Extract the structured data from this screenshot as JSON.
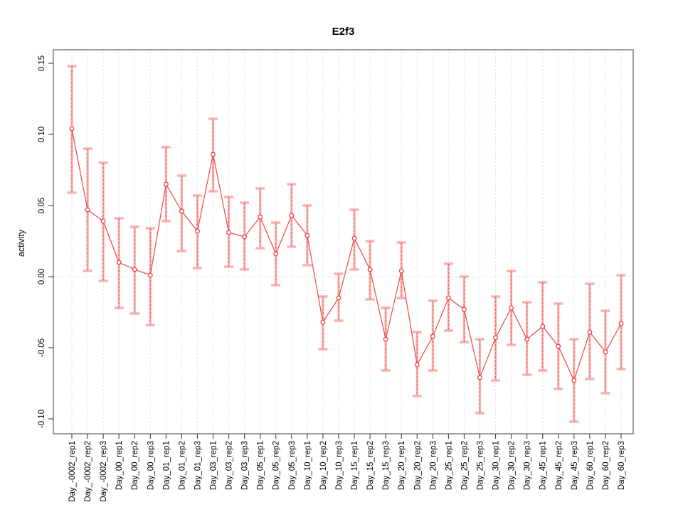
{
  "chart_data": {
    "type": "line",
    "title": "E2f3",
    "xlabel": "",
    "ylabel": "activity",
    "legend": "none",
    "marker": "open-circle",
    "error_bars": true,
    "grid": {
      "vertical": "dotted-per-category",
      "zero_line": "dotted"
    },
    "ylim": [
      -0.1105,
      0.1595
    ],
    "yticks": {
      "values": [
        0.15,
        0.1,
        0.05,
        0.0,
        -0.05,
        -0.1
      ],
      "labels": [
        "0.15",
        "0.10",
        "0.05",
        "0.00",
        "-0.05",
        "-0.10"
      ]
    },
    "categories": [
      "Day_-0002_rep1",
      "Day_-0002_rep2",
      "Day_-0002_rep3",
      "Day_00_rep1",
      "Day_00_rep2",
      "Day_00_rep3",
      "Day_01_rep1",
      "Day_01_rep2",
      "Day_01_rep3",
      "Day_03_rep1",
      "Day_03_rep2",
      "Day_03_rep3",
      "Day_05_rep1",
      "Day_05_rep2",
      "Day_05_rep3",
      "Day_10_rep1",
      "Day_10_rep2",
      "Day_10_rep3",
      "Day_15_rep1",
      "Day_15_rep2",
      "Day_15_rep3",
      "Day_20_rep1",
      "Day_20_rep2",
      "Day_20_rep3",
      "Day_25_rep1",
      "Day_25_rep2",
      "Day_25_rep3",
      "Day_30_rep1",
      "Day_30_rep2",
      "Day_30_rep3",
      "Day_45_rep1",
      "Day_45_rep2",
      "Day_45_rep3",
      "Day_60_rep1",
      "Day_60_rep2",
      "Day_60_rep3"
    ],
    "series": [
      {
        "name": "E2f3 activity",
        "values": [
          0.104,
          0.047,
          0.039,
          0.01,
          0.005,
          0.001,
          0.065,
          0.046,
          0.032,
          0.086,
          0.031,
          0.028,
          0.042,
          0.016,
          0.043,
          0.029,
          -0.032,
          -0.015,
          0.027,
          0.005,
          -0.044,
          0.004,
          -0.062,
          -0.042,
          -0.015,
          -0.023,
          -0.071,
          -0.043,
          -0.022,
          -0.044,
          -0.035,
          -0.049,
          -0.073,
          -0.039,
          -0.053,
          -0.033
        ],
        "err_lo": [
          0.059,
          0.004,
          -0.003,
          -0.022,
          -0.026,
          -0.034,
          0.039,
          0.018,
          0.006,
          0.06,
          0.007,
          0.005,
          0.02,
          -0.006,
          0.021,
          0.008,
          -0.051,
          -0.031,
          0.005,
          -0.016,
          -0.066,
          -0.015,
          -0.084,
          -0.066,
          -0.038,
          -0.046,
          -0.096,
          -0.073,
          -0.048,
          -0.069,
          -0.066,
          -0.079,
          -0.102,
          -0.072,
          -0.082,
          -0.065
        ],
        "err_hi": [
          0.148,
          0.09,
          0.08,
          0.041,
          0.035,
          0.034,
          0.091,
          0.071,
          0.057,
          0.111,
          0.056,
          0.052,
          0.062,
          0.038,
          0.065,
          0.05,
          -0.014,
          0.002,
          0.047,
          0.025,
          -0.022,
          0.024,
          -0.039,
          -0.017,
          0.009,
          0.0,
          -0.044,
          -0.014,
          0.004,
          -0.018,
          -0.004,
          -0.019,
          -0.044,
          -0.005,
          -0.024,
          0.001
        ]
      }
    ],
    "colors": {
      "series": "#ee4444",
      "error_band": "#f8b0b0",
      "error_line": "#ef5a5a",
      "grid": "#d8d8d8",
      "axis_box": "#757575",
      "tick": "#404040",
      "text": "#000000",
      "background": "#ffffff"
    }
  }
}
